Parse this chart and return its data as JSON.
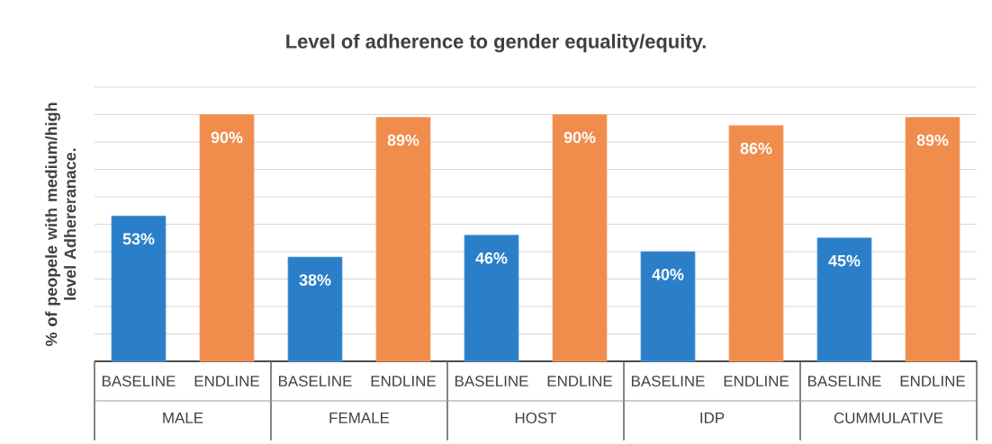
{
  "chart_data": {
    "type": "bar",
    "title": "Level of adherence to gender equality/equity.",
    "ylabel": "% of peopele with medium/high level Adhereranace.",
    "categories": [
      "MALE",
      "FEMALE",
      "HOST",
      "IDP",
      "CUMMULATIVE"
    ],
    "series": [
      {
        "name": "BASELINE",
        "color": "#2b7fc9",
        "values": [
          53,
          38,
          46,
          40,
          45
        ],
        "value_labels": [
          "53%",
          "38%",
          "46%",
          "40%",
          "45%"
        ]
      },
      {
        "name": "ENDLINE",
        "color": "#f08c4c",
        "values": [
          90,
          89,
          90,
          86,
          89
        ],
        "value_labels": [
          "90%",
          "89%",
          "90%",
          "86%",
          "89%"
        ]
      }
    ],
    "ylim": [
      0,
      100
    ],
    "yticks": [
      {
        "value": 0,
        "label": null
      },
      {
        "value": 10,
        "label": null
      },
      {
        "value": 20,
        "label": null
      },
      {
        "value": 30,
        "label": null
      },
      {
        "value": 40,
        "label": null
      },
      {
        "value": 50,
        "label": null
      },
      {
        "value": 60,
        "label": null
      },
      {
        "value": 70,
        "label": null
      },
      {
        "value": 80,
        "label": null
      },
      {
        "value": 90,
        "label": null
      },
      {
        "value": 100,
        "label": null
      }
    ],
    "grid": "y",
    "tick_labels": "x",
    "legend": false
  }
}
